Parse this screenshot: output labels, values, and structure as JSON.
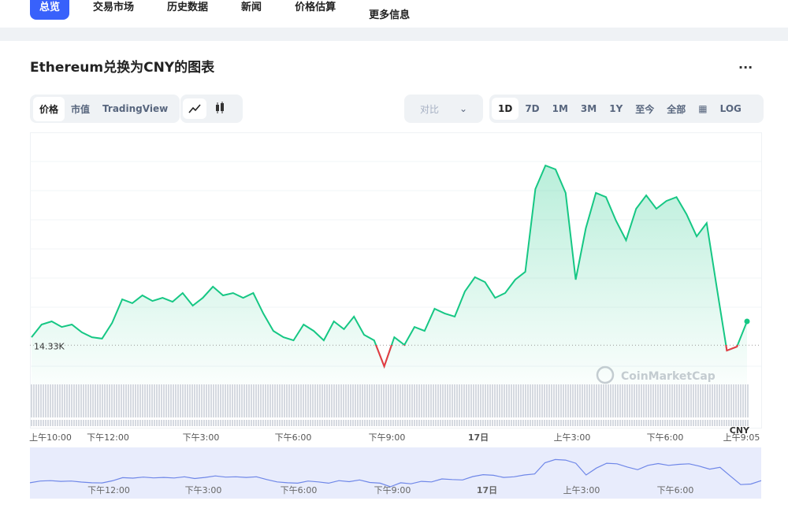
{
  "nav": {
    "tabs": [
      "总览",
      "交易市场",
      "历史数据",
      "新闻",
      "价格估算",
      "更多信息"
    ]
  },
  "header": {
    "title": "Ethereum兑换为CNY的图表",
    "menu": "..."
  },
  "toolbar": {
    "view_tabs": [
      "价格",
      "市值",
      "TradingView"
    ],
    "compare": "对比",
    "ranges": [
      "1D",
      "7D",
      "1M",
      "3M",
      "1Y",
      "至今",
      "全部"
    ],
    "log": "LOG"
  },
  "chart_data": {
    "type": "line",
    "values": [
      14363,
      14415,
      14428,
      14405,
      14415,
      14383,
      14363,
      14357,
      14422,
      14519,
      14503,
      14535,
      14512,
      14525,
      14509,
      14545,
      14493,
      14525,
      14571,
      14535,
      14545,
      14525,
      14545,
      14461,
      14389,
      14363,
      14350,
      14415,
      14389,
      14350,
      14428,
      14396,
      14448,
      14373,
      14350,
      14243,
      14363,
      14331,
      14405,
      14389,
      14480,
      14461,
      14448,
      14551,
      14610,
      14590,
      14525,
      14545,
      14600,
      14632,
      14973,
      15070,
      15054,
      14957,
      14600,
      14811,
      14957,
      14940,
      14843,
      14762,
      14892,
      14947,
      14892,
      14924,
      14940,
      14869,
      14778,
      14833,
      14568,
      14308,
      14324,
      14428
    ],
    "color": "#16c784",
    "below_color": "#ea3943",
    "ylim": [
      14000,
      15200
    ],
    "reference": {
      "value": 14330,
      "label": "14.33K"
    },
    "currency": "CNY",
    "watermark": "CoinMarketCap",
    "xtick_labels": [
      "上午10:00",
      "下午12:00",
      "下午3:00",
      "下午6:00",
      "下午9:00",
      "17日",
      "上午3:00",
      "下午6:00",
      "上午9:05"
    ],
    "navigator_labels": [
      "下午12:00",
      "下午3:00",
      "下午6:00",
      "下午9:00",
      "17日",
      "上午3:00",
      "下午6:00"
    ]
  }
}
